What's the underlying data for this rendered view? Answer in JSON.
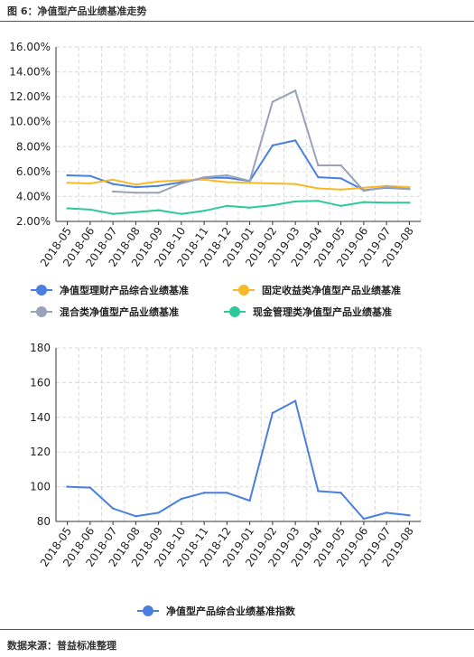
{
  "figure_title": "图 6：净值型产品业绩基准走势",
  "source": "数据来源：普益标准整理",
  "chart_data": [
    {
      "type": "line",
      "categories": [
        "2018-05",
        "2018-06",
        "2018-07",
        "2018-08",
        "2018-09",
        "2018-10",
        "2018-11",
        "2018-12",
        "2019-01",
        "2019-02",
        "2019-03",
        "2019-04",
        "2019-05",
        "2019-06",
        "2019-07",
        "2019-08"
      ],
      "ylim": [
        2,
        16
      ],
      "yticks": [
        "2.00%",
        "4.00%",
        "6.00%",
        "8.00%",
        "10.00%",
        "12.00%",
        "14.00%",
        "16.00%"
      ],
      "grid": true,
      "legend_position": "bottom",
      "series": [
        {
          "name": "净值型理财产品综合业绩基准",
          "color": "#4a7fe0",
          "values": [
            5.7,
            5.65,
            5.0,
            4.75,
            4.85,
            5.15,
            5.5,
            5.5,
            5.25,
            8.1,
            8.5,
            5.55,
            5.45,
            4.5,
            4.7,
            4.6
          ]
        },
        {
          "name": "固定收益类净值型产品业绩基准",
          "color": "#f7b928",
          "values": [
            5.1,
            5.05,
            5.35,
            4.95,
            5.2,
            5.3,
            5.35,
            5.15,
            5.1,
            5.05,
            5.0,
            4.65,
            4.55,
            4.7,
            4.85,
            4.75
          ]
        },
        {
          "name": "混合类净值型产品业绩基准",
          "color": "#98a2b8",
          "values": [
            null,
            null,
            4.4,
            4.3,
            4.3,
            5.05,
            5.55,
            5.7,
            5.25,
            11.6,
            12.5,
            6.5,
            6.5,
            4.45,
            4.75,
            4.6
          ]
        },
        {
          "name": "现金管理类净值型产品业绩基准",
          "color": "#2ec89a",
          "values": [
            3.05,
            2.95,
            2.6,
            2.75,
            2.9,
            2.6,
            2.85,
            3.25,
            3.1,
            3.3,
            3.6,
            3.65,
            3.25,
            3.55,
            3.5,
            3.5
          ]
        }
      ]
    },
    {
      "type": "line",
      "categories": [
        "2018-05",
        "2018-06",
        "2018-07",
        "2018-08",
        "2018-09",
        "2018-10",
        "2018-11",
        "2018-12",
        "2019-01",
        "2019-02",
        "2019-03",
        "2019-04",
        "2019-05",
        "2019-06",
        "2019-07",
        "2019-08"
      ],
      "ylim": [
        80,
        180
      ],
      "yticks": [
        "80",
        "100",
        "120",
        "140",
        "160",
        "180"
      ],
      "grid": true,
      "legend_position": "bottom",
      "series": [
        {
          "name": "净值型产品综合业绩基准指数",
          "color": "#4a7fe0",
          "values": [
            100,
            99.5,
            87.5,
            83,
            85,
            93,
            96.5,
            96.5,
            92,
            142.5,
            149.5,
            97.5,
            96.5,
            81.5,
            85,
            83.5
          ]
        }
      ]
    }
  ]
}
